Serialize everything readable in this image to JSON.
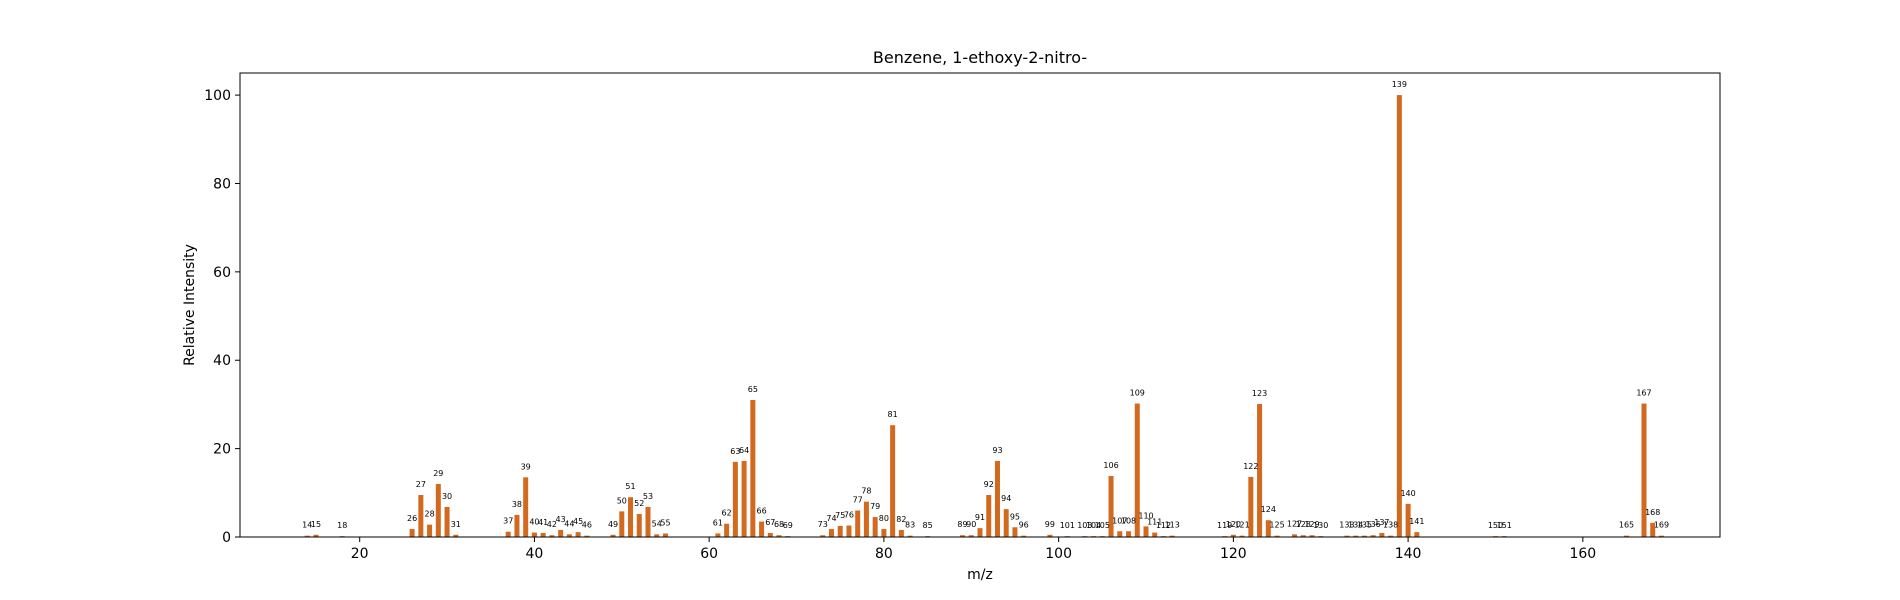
{
  "chart_data": {
    "type": "bar",
    "title": "Benzene, 1-ethoxy-2-nitro-",
    "xlabel": "m/z",
    "ylabel": "Relative Intensity",
    "xlim": [
      6.3,
      175.7
    ],
    "ylim": [
      0,
      105
    ],
    "xticks": [
      20,
      40,
      60,
      80,
      100,
      120,
      140,
      160
    ],
    "yticks": [
      0,
      20,
      40,
      60,
      80,
      100
    ],
    "grid": false,
    "bar_color": "#d2691e",
    "peaks": [
      {
        "x": 14,
        "y": 0.3
      },
      {
        "x": 15,
        "y": 0.5
      },
      {
        "x": 18,
        "y": 0.2
      },
      {
        "x": 26,
        "y": 1.8
      },
      {
        "x": 27,
        "y": 9.5
      },
      {
        "x": 28,
        "y": 2.8
      },
      {
        "x": 29,
        "y": 12
      },
      {
        "x": 30,
        "y": 6.8
      },
      {
        "x": 31,
        "y": 0.5
      },
      {
        "x": 37,
        "y": 1.2
      },
      {
        "x": 38,
        "y": 5
      },
      {
        "x": 39,
        "y": 13.5
      },
      {
        "x": 40,
        "y": 1
      },
      {
        "x": 41,
        "y": 0.9
      },
      {
        "x": 42,
        "y": 0.4
      },
      {
        "x": 43,
        "y": 1.6
      },
      {
        "x": 44,
        "y": 0.6
      },
      {
        "x": 45,
        "y": 1.1
      },
      {
        "x": 46,
        "y": 0.3
      },
      {
        "x": 49,
        "y": 0.5
      },
      {
        "x": 50,
        "y": 5.8
      },
      {
        "x": 51,
        "y": 9
      },
      {
        "x": 52,
        "y": 5.2
      },
      {
        "x": 53,
        "y": 6.8
      },
      {
        "x": 54,
        "y": 0.6
      },
      {
        "x": 55,
        "y": 0.8
      },
      {
        "x": 61,
        "y": 0.8
      },
      {
        "x": 62,
        "y": 3
      },
      {
        "x": 63,
        "y": 17
      },
      {
        "x": 64,
        "y": 17.2
      },
      {
        "x": 65,
        "y": 31
      },
      {
        "x": 66,
        "y": 3.5
      },
      {
        "x": 67,
        "y": 0.9
      },
      {
        "x": 68,
        "y": 0.4
      },
      {
        "x": 69,
        "y": 0.2
      },
      {
        "x": 73,
        "y": 0.4
      },
      {
        "x": 74,
        "y": 1.8
      },
      {
        "x": 75,
        "y": 2.5
      },
      {
        "x": 76,
        "y": 2.6
      },
      {
        "x": 77,
        "y": 6
      },
      {
        "x": 78,
        "y": 8
      },
      {
        "x": 79,
        "y": 4.5
      },
      {
        "x": 80,
        "y": 1.8
      },
      {
        "x": 81,
        "y": 25.3
      },
      {
        "x": 82,
        "y": 1.6
      },
      {
        "x": 83,
        "y": 0.3
      },
      {
        "x": 85,
        "y": 0.2
      },
      {
        "x": 89,
        "y": 0.4
      },
      {
        "x": 90,
        "y": 0.4
      },
      {
        "x": 91,
        "y": 2
      },
      {
        "x": 92,
        "y": 9.5
      },
      {
        "x": 93,
        "y": 17.2
      },
      {
        "x": 94,
        "y": 6.3
      },
      {
        "x": 95,
        "y": 2.2
      },
      {
        "x": 96,
        "y": 0.3
      },
      {
        "x": 99,
        "y": 0.5
      },
      {
        "x": 101,
        "y": 0.2
      },
      {
        "x": 103,
        "y": 0.2
      },
      {
        "x": 104,
        "y": 0.2
      },
      {
        "x": 105,
        "y": 0.2
      },
      {
        "x": 106,
        "y": 13.8
      },
      {
        "x": 107,
        "y": 1.3
      },
      {
        "x": 108,
        "y": 1.3
      },
      {
        "x": 109,
        "y": 30.2
      },
      {
        "x": 110,
        "y": 2.4
      },
      {
        "x": 111,
        "y": 1
      },
      {
        "x": 112,
        "y": 0.2
      },
      {
        "x": 113,
        "y": 0.3
      },
      {
        "x": 119,
        "y": 0.2
      },
      {
        "x": 120,
        "y": 0.5
      },
      {
        "x": 121,
        "y": 0.3
      },
      {
        "x": 122,
        "y": 13.6
      },
      {
        "x": 123,
        "y": 30.1
      },
      {
        "x": 124,
        "y": 3.8
      },
      {
        "x": 125,
        "y": 0.3
      },
      {
        "x": 127,
        "y": 0.6
      },
      {
        "x": 128,
        "y": 0.4
      },
      {
        "x": 129,
        "y": 0.4
      },
      {
        "x": 130,
        "y": 0.2
      },
      {
        "x": 133,
        "y": 0.3
      },
      {
        "x": 134,
        "y": 0.3
      },
      {
        "x": 135,
        "y": 0.3
      },
      {
        "x": 136,
        "y": 0.4
      },
      {
        "x": 137,
        "y": 0.9
      },
      {
        "x": 138,
        "y": 0.3
      },
      {
        "x": 139,
        "y": 100
      },
      {
        "x": 140,
        "y": 7.5
      },
      {
        "x": 141,
        "y": 1.1
      },
      {
        "x": 150,
        "y": 0.2
      },
      {
        "x": 151,
        "y": 0.2
      },
      {
        "x": 165,
        "y": 0.3
      },
      {
        "x": 167,
        "y": 30.2
      },
      {
        "x": 168,
        "y": 3.2
      },
      {
        "x": 169,
        "y": 0.3
      }
    ],
    "peak_labels": [
      {
        "x": 14,
        "y": 0.3,
        "text": "14"
      },
      {
        "x": 15,
        "y": 0.5,
        "text": "15"
      },
      {
        "x": 18,
        "y": 0.2,
        "text": "18"
      },
      {
        "x": 26,
        "y": 1.8,
        "text": "26"
      },
      {
        "x": 27,
        "y": 9.5,
        "text": "27"
      },
      {
        "x": 28,
        "y": 2.8,
        "text": "28"
      },
      {
        "x": 29,
        "y": 12,
        "text": "29"
      },
      {
        "x": 30,
        "y": 6.8,
        "text": "30"
      },
      {
        "x": 31,
        "y": 0.5,
        "text": "31"
      },
      {
        "x": 37,
        "y": 1.2,
        "text": "37"
      },
      {
        "x": 38,
        "y": 5,
        "text": "38"
      },
      {
        "x": 39,
        "y": 13.5,
        "text": "39"
      },
      {
        "x": 40,
        "y": 1,
        "text": "40"
      },
      {
        "x": 41,
        "y": 0.9,
        "text": "41"
      },
      {
        "x": 42,
        "y": 0.4,
        "text": "42"
      },
      {
        "x": 43,
        "y": 1.6,
        "text": "43"
      },
      {
        "x": 44,
        "y": 0.6,
        "text": "44"
      },
      {
        "x": 45,
        "y": 1.1,
        "text": "45"
      },
      {
        "x": 46,
        "y": 0.3,
        "text": "46"
      },
      {
        "x": 49,
        "y": 0.5,
        "text": "49"
      },
      {
        "x": 50,
        "y": 5.8,
        "text": "50"
      },
      {
        "x": 51,
        "y": 9,
        "text": "51"
      },
      {
        "x": 52,
        "y": 5.2,
        "text": "52"
      },
      {
        "x": 53,
        "y": 6.8,
        "text": "53"
      },
      {
        "x": 54,
        "y": 0.6,
        "text": "54"
      },
      {
        "x": 55,
        "y": 0.8,
        "text": "55"
      },
      {
        "x": 61,
        "y": 0.8,
        "text": "61"
      },
      {
        "x": 62,
        "y": 3,
        "text": "62"
      },
      {
        "x": 63,
        "y": 17,
        "text": "63"
      },
      {
        "x": 64,
        "y": 17.2,
        "text": "64"
      },
      {
        "x": 65,
        "y": 31,
        "text": "65"
      },
      {
        "x": 66,
        "y": 3.5,
        "text": "66"
      },
      {
        "x": 67,
        "y": 0.9,
        "text": "67"
      },
      {
        "x": 68,
        "y": 0.4,
        "text": "68"
      },
      {
        "x": 69,
        "y": 0.2,
        "text": "69"
      },
      {
        "x": 73,
        "y": 0.4,
        "text": "73"
      },
      {
        "x": 74,
        "y": 1.8,
        "text": "74"
      },
      {
        "x": 75,
        "y": 2.5,
        "text": "75"
      },
      {
        "x": 76,
        "y": 2.6,
        "text": "76"
      },
      {
        "x": 77,
        "y": 6,
        "text": "77"
      },
      {
        "x": 78,
        "y": 8,
        "text": "78"
      },
      {
        "x": 79,
        "y": 4.5,
        "text": "79"
      },
      {
        "x": 80,
        "y": 1.8,
        "text": "80"
      },
      {
        "x": 81,
        "y": 25.3,
        "text": "81"
      },
      {
        "x": 82,
        "y": 1.6,
        "text": "82"
      },
      {
        "x": 83,
        "y": 0.3,
        "text": "83"
      },
      {
        "x": 85,
        "y": 0.2,
        "text": "85"
      },
      {
        "x": 89,
        "y": 0.4,
        "text": "89"
      },
      {
        "x": 90,
        "y": 0.4,
        "text": "90"
      },
      {
        "x": 91,
        "y": 2,
        "text": "91"
      },
      {
        "x": 92,
        "y": 9.5,
        "text": "92"
      },
      {
        "x": 93,
        "y": 17.2,
        "text": "93"
      },
      {
        "x": 94,
        "y": 6.3,
        "text": "94"
      },
      {
        "x": 95,
        "y": 2.2,
        "text": "95"
      },
      {
        "x": 96,
        "y": 0.3,
        "text": "96"
      },
      {
        "x": 99,
        "y": 0.5,
        "text": "99"
      },
      {
        "x": 101,
        "y": 0.2,
        "text": "101"
      },
      {
        "x": 103,
        "y": 0.2,
        "text": "103"
      },
      {
        "x": 104,
        "y": 0.2,
        "text": "104"
      },
      {
        "x": 105,
        "y": 0.2,
        "text": "105"
      },
      {
        "x": 106,
        "y": 13.8,
        "text": "106"
      },
      {
        "x": 107,
        "y": 1.3,
        "text": "107"
      },
      {
        "x": 108,
        "y": 1.3,
        "text": "108"
      },
      {
        "x": 109,
        "y": 30.2,
        "text": "109"
      },
      {
        "x": 110,
        "y": 2.4,
        "text": "110"
      },
      {
        "x": 111,
        "y": 1,
        "text": "111"
      },
      {
        "x": 112,
        "y": 0.2,
        "text": "112"
      },
      {
        "x": 113,
        "y": 0.3,
        "text": "113"
      },
      {
        "x": 119,
        "y": 0.2,
        "text": "119"
      },
      {
        "x": 120,
        "y": 0.5,
        "text": "120"
      },
      {
        "x": 121,
        "y": 0.3,
        "text": "121"
      },
      {
        "x": 122,
        "y": 13.6,
        "text": "122"
      },
      {
        "x": 123,
        "y": 30.1,
        "text": "123"
      },
      {
        "x": 124,
        "y": 3.8,
        "text": "124"
      },
      {
        "x": 125,
        "y": 0.3,
        "text": "125"
      },
      {
        "x": 127,
        "y": 0.6,
        "text": "127"
      },
      {
        "x": 128,
        "y": 0.4,
        "text": "128"
      },
      {
        "x": 129,
        "y": 0.4,
        "text": "129"
      },
      {
        "x": 130,
        "y": 0.2,
        "text": "130"
      },
      {
        "x": 133,
        "y": 0.3,
        "text": "133"
      },
      {
        "x": 134,
        "y": 0.3,
        "text": "134"
      },
      {
        "x": 135,
        "y": 0.3,
        "text": "135"
      },
      {
        "x": 136,
        "y": 0.4,
        "text": "136"
      },
      {
        "x": 137,
        "y": 0.9,
        "text": "137"
      },
      {
        "x": 138,
        "y": 0.3,
        "text": "138"
      },
      {
        "x": 139,
        "y": 100,
        "text": "139"
      },
      {
        "x": 140,
        "y": 7.5,
        "text": "140"
      },
      {
        "x": 141,
        "y": 1.1,
        "text": "141"
      },
      {
        "x": 150,
        "y": 0.2,
        "text": "150"
      },
      {
        "x": 151,
        "y": 0.2,
        "text": "151"
      },
      {
        "x": 165,
        "y": 0.3,
        "text": "165"
      },
      {
        "x": 167,
        "y": 30.2,
        "text": "167"
      },
      {
        "x": 168,
        "y": 3.2,
        "text": "168"
      },
      {
        "x": 169,
        "y": 0.3,
        "text": "169"
      }
    ]
  }
}
